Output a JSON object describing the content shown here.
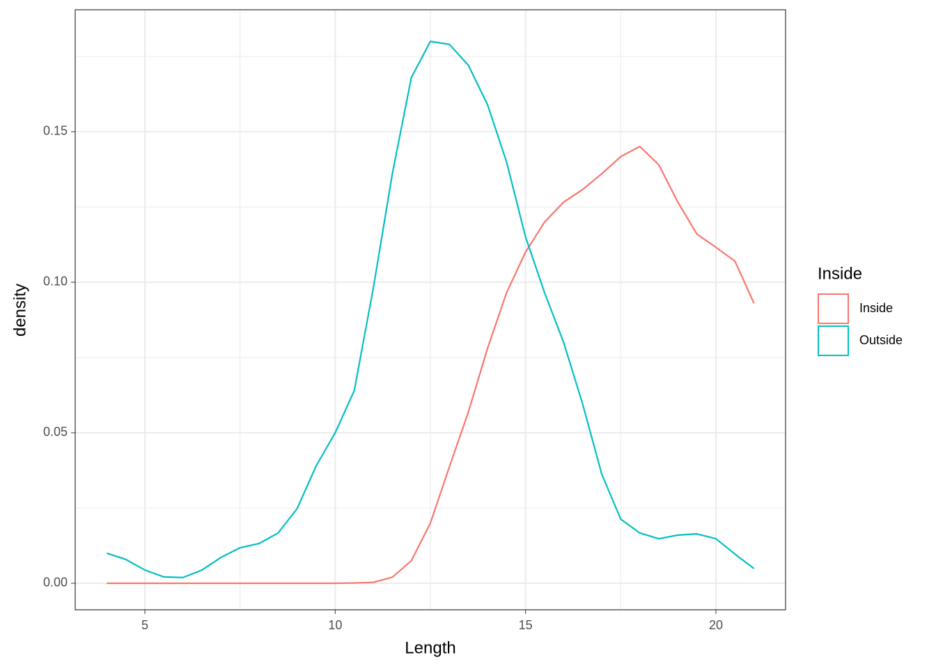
{
  "chart_data": {
    "type": "line",
    "x_label": "Length",
    "y_label": "density",
    "legend_title": "Inside",
    "legend_position": "right",
    "grid": true,
    "x": [
      4,
      4.5,
      5,
      5.5,
      6,
      6.5,
      7,
      7.5,
      8,
      8.5,
      9,
      9.5,
      10,
      10.5,
      11,
      11.5,
      12,
      12.5,
      13,
      13.5,
      14,
      14.5,
      15,
      15.5,
      16,
      16.5,
      17,
      17.5,
      18,
      18.5,
      19,
      19.5,
      20,
      20.5,
      21
    ],
    "series": [
      {
        "name": "Inside",
        "color": "#F8766D",
        "values": [
          0,
          0,
          0,
          0,
          0,
          0,
          0,
          0,
          0,
          0,
          0,
          0,
          0,
          0.0001,
          0.0003,
          0.002,
          0.0075,
          0.02,
          0.0387,
          0.057,
          0.078,
          0.0965,
          0.11,
          0.12,
          0.1266,
          0.1308,
          0.136,
          0.1417,
          0.1451,
          0.139,
          0.1266,
          0.116,
          0.1116,
          0.107,
          0.093
        ]
      },
      {
        "name": "Outside",
        "color": "#00BFC4",
        "values": [
          0.01,
          0.0079,
          0.0044,
          0.0021,
          0.0019,
          0.0044,
          0.0086,
          0.0118,
          0.0132,
          0.0167,
          0.0248,
          0.039,
          0.05,
          0.064,
          0.098,
          0.136,
          0.168,
          0.18,
          0.179,
          0.172,
          0.159,
          0.14,
          0.115,
          0.0965,
          0.08,
          0.0595,
          0.0363,
          0.0213,
          0.0167,
          0.0148,
          0.016,
          0.0164,
          0.0148,
          0.0097,
          0.0049
        ]
      }
    ],
    "xlim": [
      3.17,
      21.83
    ],
    "xticks": [
      5,
      10,
      15,
      20
    ],
    "xminor": [
      7.5,
      12.5,
      17.5
    ],
    "ylim": [
      -0.0088,
      0.1905
    ],
    "yticks": [
      {
        "value": 0,
        "label": "0.00"
      },
      {
        "value": 0.05,
        "label": "0.05"
      },
      {
        "value": 0.1,
        "label": "0.10"
      },
      {
        "value": 0.15,
        "label": "0.15"
      }
    ],
    "yminor": [
      0.025,
      0.075,
      0.125,
      0.175
    ]
  }
}
